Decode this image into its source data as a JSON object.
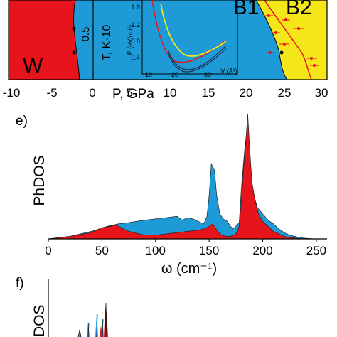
{
  "panels": {
    "top": {
      "panel_letter": "",
      "x_ticks": [
        "-10",
        "-5",
        "0",
        "5",
        "10",
        "15",
        "20",
        "25",
        "30"
      ],
      "x_label": "P, GPa",
      "y_label_T": "T, K·10",
      "y_tick_T": "0.5",
      "phase_labels": [
        "W",
        "B1",
        "B2"
      ],
      "inset": {
        "y_label": "E (eV/unit)",
        "y_ticks": [
          "1.6",
          "1.2",
          "0.8",
          "0.4"
        ],
        "x_ticks": [
          "10",
          "20",
          "30"
        ],
        "x_label": "V (Å³)"
      },
      "colors": {
        "W": "#e8141b",
        "B1": "#1e9bd7",
        "B2": "#f5e61a"
      }
    },
    "e": {
      "panel_letter": "e)"
    },
    "f": {
      "panel_letter": "f)",
      "y_label": "DOS"
    }
  },
  "chart_data": [
    {
      "type": "area",
      "panel": "e",
      "xlabel": "ω (cm⁻¹)",
      "ylabel": "PhDOS",
      "xlim": [
        0,
        260
      ],
      "xticks": [
        0,
        50,
        100,
        150,
        200,
        250
      ],
      "series": [
        {
          "color": "#1e9bd7",
          "x": [
            0,
            20,
            40,
            55,
            65,
            75,
            82,
            90,
            100,
            110,
            120,
            125,
            130,
            135,
            140,
            145,
            148,
            150,
            152,
            155,
            157,
            160,
            163,
            167,
            170,
            172,
            175,
            178,
            180,
            183,
            185,
            187,
            190,
            195,
            200,
            205,
            210,
            215,
            220,
            225,
            230,
            235,
            240,
            245,
            250
          ],
          "y": [
            0,
            0.02,
            0.06,
            0.1,
            0.12,
            0.13,
            0.14,
            0.15,
            0.16,
            0.17,
            0.18,
            0.15,
            0.17,
            0.16,
            0.14,
            0.12,
            0.18,
            0.35,
            0.6,
            0.55,
            0.35,
            0.2,
            0.16,
            0.14,
            0.1,
            0.08,
            0.1,
            0.13,
            0.4,
            0.7,
            0.85,
            0.6,
            0.4,
            0.25,
            0.2,
            0.15,
            0.12,
            0.08,
            0.05,
            0.03,
            0.02,
            0.01,
            0.005,
            0.002,
            0
          ]
        },
        {
          "color": "#e8141b",
          "x": [
            0,
            20,
            40,
            50,
            58,
            62,
            66,
            70,
            75,
            80,
            85,
            90,
            100,
            110,
            120,
            130,
            140,
            145,
            150,
            153,
            155,
            158,
            162,
            166,
            170,
            175,
            178,
            180,
            182,
            184,
            186,
            188,
            190,
            193,
            196,
            200,
            205,
            210,
            215,
            220,
            225,
            230,
            235,
            240,
            245,
            250
          ],
          "y": [
            0,
            0.02,
            0.05,
            0.09,
            0.1,
            0.11,
            0.1,
            0.08,
            0.06,
            0.05,
            0.04,
            0.03,
            0.03,
            0.04,
            0.05,
            0.06,
            0.07,
            0.08,
            0.1,
            0.12,
            0.1,
            0.06,
            0.03,
            0.02,
            0.02,
            0.04,
            0.1,
            0.3,
            0.55,
            0.75,
            1.0,
            0.7,
            0.45,
            0.3,
            0.2,
            0.14,
            0.1,
            0.06,
            0.04,
            0.02,
            0.012,
            0.006,
            0.003,
            0.001,
            0,
            0
          ]
        }
      ]
    }
  ]
}
